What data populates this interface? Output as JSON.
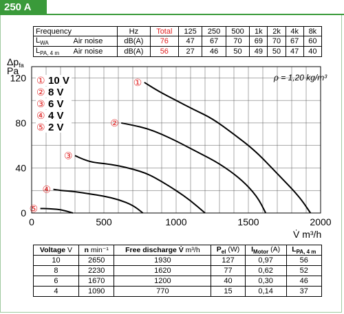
{
  "header": {
    "title": "250 A",
    "color": "#3a9a3a"
  },
  "noise_table": {
    "col_headers": [
      "Frequency",
      "Hz",
      "Total",
      "125",
      "250",
      "500",
      "1k",
      "2k",
      "4k",
      "8k"
    ],
    "rows": [
      {
        "label_main": "L",
        "label_sub": "WA",
        "desc": "Air noise",
        "unit": "dB(A)",
        "total": "76",
        "values": [
          "47",
          "67",
          "70",
          "69",
          "70",
          "67",
          "60"
        ]
      },
      {
        "label_main": "L",
        "label_sub": "PA, 4 m",
        "desc": "Air noise",
        "unit": "dB(A)",
        "total": "56",
        "values": [
          "27",
          "46",
          "50",
          "49",
          "50",
          "47",
          "40"
        ]
      }
    ],
    "total_color": "#e02020"
  },
  "chart_data": {
    "type": "line",
    "ylabel_main": "Δp",
    "ylabel_sub": "fa",
    "ylabel_unit": "Pa",
    "xlabel": "V̇ m³/h",
    "density_note": "ρ = 1,20 kg/m³",
    "xlim": [
      0,
      2000
    ],
    "ylim": [
      0,
      130
    ],
    "x_ticks": [
      "0",
      "500",
      "1000",
      "1500",
      "2000"
    ],
    "x_tick_values": [
      0,
      500,
      1000,
      1500,
      2000
    ],
    "y_ticks": [
      "0",
      "40",
      "80",
      "120"
    ],
    "y_tick_values": [
      0,
      40,
      80,
      120
    ],
    "grid": true,
    "series": [
      {
        "name": "10 V",
        "marker": "①",
        "points": [
          [
            780,
            116
          ],
          [
            880,
            108
          ],
          [
            1000,
            100
          ],
          [
            1120,
            92
          ],
          [
            1250,
            84
          ],
          [
            1400,
            70
          ],
          [
            1550,
            55
          ],
          [
            1700,
            35
          ],
          [
            1850,
            15
          ],
          [
            1930,
            0
          ]
        ]
      },
      {
        "name": "8 V",
        "marker": "②",
        "points": [
          [
            620,
            80
          ],
          [
            700,
            78
          ],
          [
            800,
            75
          ],
          [
            900,
            70
          ],
          [
            1000,
            64
          ],
          [
            1150,
            54
          ],
          [
            1300,
            44
          ],
          [
            1450,
            30
          ],
          [
            1560,
            15
          ],
          [
            1620,
            0
          ]
        ]
      },
      {
        "name": "6 V",
        "marker": "③",
        "points": [
          [
            300,
            51
          ],
          [
            350,
            48
          ],
          [
            420,
            45
          ],
          [
            500,
            44
          ],
          [
            600,
            42
          ],
          [
            700,
            39
          ],
          [
            800,
            35
          ],
          [
            900,
            28
          ],
          [
            1000,
            20
          ],
          [
            1100,
            11
          ],
          [
            1200,
            0
          ]
        ]
      },
      {
        "name": "4 V",
        "marker": "④",
        "points": [
          [
            150,
            21
          ],
          [
            200,
            20
          ],
          [
            300,
            19
          ],
          [
            400,
            17
          ],
          [
            500,
            15
          ],
          [
            600,
            12
          ],
          [
            700,
            7
          ],
          [
            770,
            0
          ]
        ]
      },
      {
        "name": "2 V",
        "marker": "⑤",
        "points": [
          [
            60,
            4
          ],
          [
            100,
            4
          ],
          [
            150,
            3.5
          ],
          [
            200,
            3
          ],
          [
            260,
            1
          ],
          [
            285,
            0
          ]
        ]
      }
    ],
    "legend": [
      {
        "marker": "①",
        "label": "10 V"
      },
      {
        "marker": "②",
        "label": "8 V"
      },
      {
        "marker": "③",
        "label": "6 V"
      },
      {
        "marker": "④",
        "label": "4 V"
      },
      {
        "marker": "⑤",
        "label": "2 V"
      }
    ],
    "marker_color": "#e02020"
  },
  "perf_table": {
    "headers": [
      {
        "main": "Voltage",
        "unit": " V"
      },
      {
        "main": "n",
        "unit": " min⁻¹"
      },
      {
        "main": "Free discharge V̇",
        "unit": " m³/h"
      },
      {
        "main": "P",
        "sub": "el",
        "unit": " (W)"
      },
      {
        "main": "I",
        "sub": "Motor",
        "unit": " (A)"
      },
      {
        "main": "L",
        "sub": "PA, 4 m",
        "unit": ""
      }
    ],
    "rows": [
      [
        "10",
        "2650",
        "1930",
        "127",
        "0,97",
        "56"
      ],
      [
        "8",
        "2230",
        "1620",
        "77",
        "0,62",
        "52"
      ],
      [
        "6",
        "1670",
        "1200",
        "40",
        "0,30",
        "46"
      ],
      [
        "4",
        "1090",
        "770",
        "15",
        "0,14",
        "37"
      ]
    ]
  }
}
